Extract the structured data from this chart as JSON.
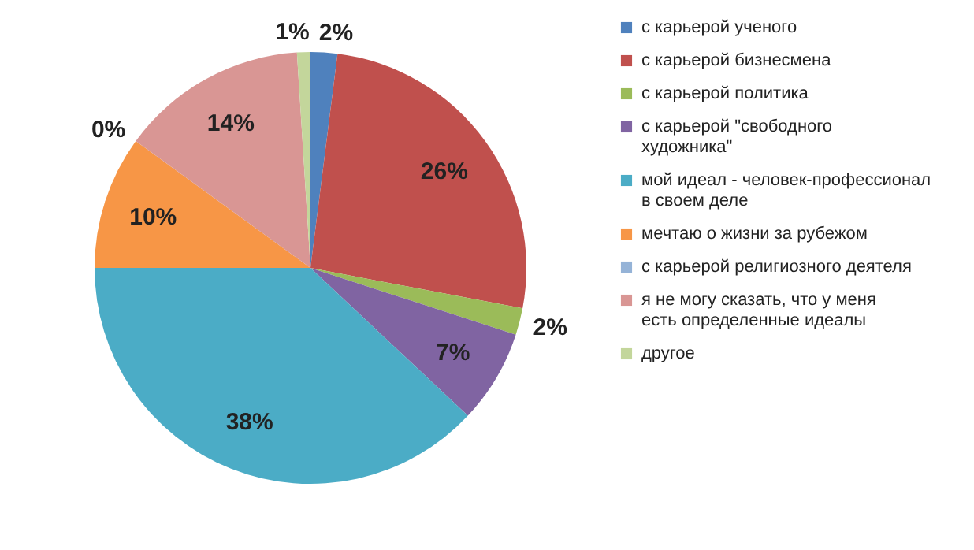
{
  "chart_data": {
    "type": "pie",
    "categories": [
      "с карьерой ученого",
      "с карьерой бизнесмена",
      "с карьерой политика",
      "с карьерой \"свободного художника\"",
      "мой идеал - человек-профессионал в своем деле",
      "мечтаю о жизни за рубежом",
      "с карьерой религиозного деятеля",
      "я не могу сказать, что у меня есть определенные  идеалы",
      "другое"
    ],
    "values": [
      2,
      26,
      2,
      7,
      38,
      10,
      0,
      14,
      1
    ],
    "value_labels": [
      "2%",
      "26%",
      "2%",
      "7%",
      "38%",
      "10%",
      "0%",
      "14%",
      "1%"
    ],
    "colors": [
      "#4f81bd",
      "#c0504d",
      "#9bbb59",
      "#8064a2",
      "#4bacc6",
      "#f79646",
      "#95b3d7",
      "#d99694",
      "#c3d69b"
    ],
    "legend": "right"
  }
}
